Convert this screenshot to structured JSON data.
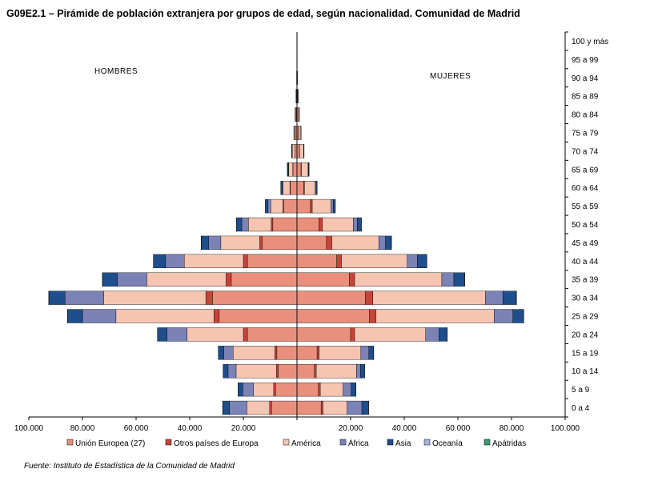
{
  "title": "G09E2.1 – Pirámide de población extranjera por grupos de edad, según nacionalidad. Comunidad de Madrid",
  "source": "Fuente: Instituto de Estadística de la Comunidad de Madrid",
  "chart_data": {
    "type": "bar",
    "orientation": "horizontal-pyramid",
    "side_labels": {
      "left": "HOMBRES",
      "right": "MUJERES"
    },
    "categories": [
      "0 a 4",
      "5 a 9",
      "10 a 14",
      "15 a 19",
      "20 a 24",
      "25 a 29",
      "30 a 34",
      "35 a 39",
      "40 a 44",
      "45 a 49",
      "50 a 54",
      "55 a 59",
      "60 a 64",
      "65 a 69",
      "70 a 74",
      "75 a 79",
      "80 a 84",
      "85 a 89",
      "90 a 94",
      "95 a 99",
      "100 y más"
    ],
    "x_ticks": [
      "100.000",
      "80.000",
      "60.000",
      "40.000",
      "20.000",
      "",
      "20.000",
      "40.000",
      "60.000",
      "80.000",
      "100.000"
    ],
    "xlim": [
      -100000,
      100000
    ],
    "legend_position": "bottom",
    "series": [
      {
        "name": "Unión Europea (27)",
        "color": "#e8907c",
        "men": [
          9500,
          8000,
          7000,
          7500,
          18500,
          29000,
          31500,
          24500,
          18500,
          13000,
          9000,
          5000,
          2500,
          1500,
          800,
          500,
          300,
          150,
          50,
          20,
          5
        ],
        "women": [
          9000,
          8000,
          6500,
          7500,
          20000,
          27000,
          25500,
          19500,
          14800,
          11000,
          8200,
          5000,
          2500,
          1500,
          900,
          600,
          400,
          200,
          80,
          30,
          10
        ]
      },
      {
        "name": "Otros países de Europa",
        "color": "#c84438",
        "men": [
          700,
          700,
          700,
          800,
          1500,
          2000,
          2500,
          2000,
          1500,
          900,
          600,
          300,
          150,
          80,
          50,
          30,
          20,
          10,
          5,
          0,
          0
        ],
        "women": [
          700,
          700,
          700,
          800,
          1500,
          2500,
          2800,
          2000,
          1800,
          2000,
          1300,
          700,
          300,
          150,
          80,
          50,
          30,
          15,
          5,
          0,
          0
        ]
      },
      {
        "name": "América",
        "color": "#f6c5b1",
        "men": [
          8500,
          7500,
          15000,
          15500,
          21000,
          36500,
          38000,
          29500,
          22000,
          14500,
          8500,
          4500,
          2500,
          1500,
          900,
          500,
          300,
          150,
          50,
          20,
          5
        ],
        "women": [
          9000,
          8500,
          15000,
          15500,
          26500,
          44000,
          42000,
          32500,
          24500,
          17500,
          11500,
          7000,
          4000,
          2500,
          1500,
          800,
          500,
          200,
          80,
          30,
          5
        ]
      },
      {
        "name": "África",
        "color": "#7a82b6",
        "men": [
          6500,
          4000,
          3000,
          3500,
          7500,
          12500,
          14500,
          11000,
          7000,
          4500,
          2500,
          1000,
          400,
          200,
          100,
          50,
          30,
          10,
          5,
          0,
          0
        ],
        "women": [
          5500,
          3000,
          1500,
          3000,
          5000,
          7000,
          6500,
          4500,
          3800,
          2500,
          1500,
          800,
          300,
          150,
          80,
          40,
          20,
          10,
          0,
          0,
          0
        ]
      },
      {
        "name": "Asia",
        "color": "#1f4e8c",
        "men": [
          2500,
          1800,
          1800,
          2000,
          3500,
          5500,
          6000,
          5500,
          4500,
          2800,
          2000,
          1000,
          500,
          300,
          200,
          100,
          50,
          20,
          10,
          0,
          0
        ],
        "women": [
          2500,
          1800,
          1500,
          1800,
          3000,
          4000,
          5000,
          4000,
          3500,
          2200,
          1500,
          800,
          400,
          200,
          100,
          50,
          30,
          10,
          5,
          0,
          0
        ]
      },
      {
        "name": "Oceanía",
        "color": "#a8b4dc",
        "men": [
          20,
          20,
          20,
          20,
          30,
          50,
          60,
          50,
          40,
          30,
          20,
          10,
          5,
          5,
          0,
          0,
          0,
          0,
          0,
          0,
          0
        ],
        "women": [
          20,
          20,
          20,
          20,
          30,
          50,
          60,
          50,
          40,
          30,
          20,
          10,
          5,
          5,
          0,
          0,
          0,
          0,
          0,
          0,
          0
        ]
      },
      {
        "name": "Apátridas",
        "color": "#3d9a72",
        "men": [
          5,
          5,
          5,
          5,
          10,
          10,
          10,
          10,
          5,
          5,
          5,
          0,
          0,
          0,
          0,
          0,
          0,
          0,
          0,
          0,
          0
        ],
        "women": [
          5,
          5,
          5,
          5,
          10,
          10,
          10,
          10,
          5,
          5,
          5,
          0,
          0,
          0,
          0,
          0,
          0,
          0,
          0,
          0,
          0
        ]
      }
    ]
  }
}
